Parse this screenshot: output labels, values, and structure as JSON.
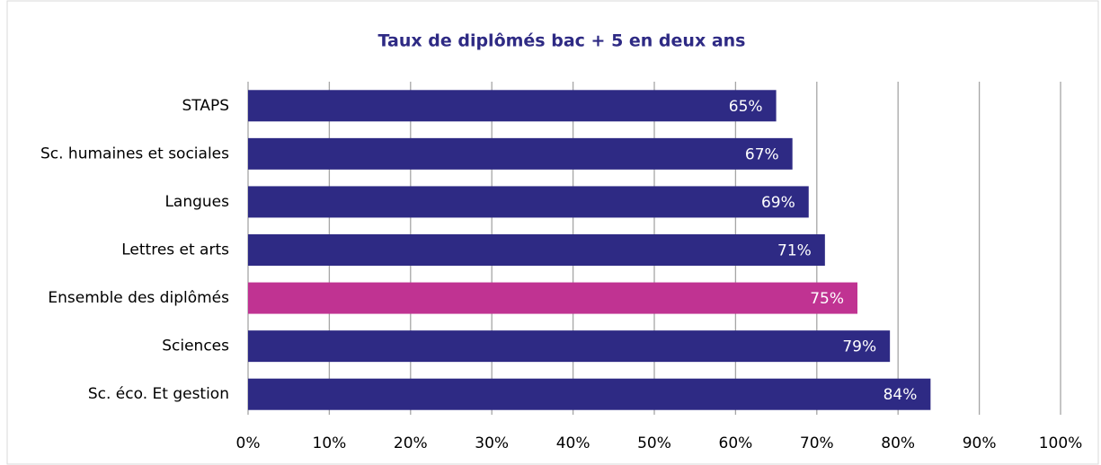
{
  "chart_data": {
    "type": "bar",
    "orientation": "horizontal",
    "title": "Taux de diplômés bac + 5 en deux ans",
    "categories": [
      "STAPS",
      "Sc. humaines et sociales",
      "Langues",
      "Lettres et arts",
      "Ensemble des diplômés",
      "Sciences",
      "Sc. éco. Et gestion"
    ],
    "values": [
      65,
      67,
      69,
      71,
      75,
      79,
      84
    ],
    "value_labels": [
      "65%",
      "67%",
      "69%",
      "71%",
      "75%",
      "79%",
      "84%"
    ],
    "colors": [
      "#2e2a84",
      "#2e2a84",
      "#2e2a84",
      "#2e2a84",
      "#c03392",
      "#2e2a84",
      "#2e2a84"
    ],
    "xlim": [
      0,
      100
    ],
    "xticks": [
      {
        "value": 0,
        "label": "0%"
      },
      {
        "value": 10,
        "label": "10%"
      },
      {
        "value": 20,
        "label": "20%"
      },
      {
        "value": 30,
        "label": "30%"
      },
      {
        "value": 40,
        "label": "40%"
      },
      {
        "value": 50,
        "label": "50%"
      },
      {
        "value": 60,
        "label": "60%"
      },
      {
        "value": 70,
        "label": "70%"
      },
      {
        "value": 80,
        "label": "80%"
      },
      {
        "value": 90,
        "label": "90%"
      },
      {
        "value": 100,
        "label": "100%"
      }
    ],
    "grid": true
  }
}
